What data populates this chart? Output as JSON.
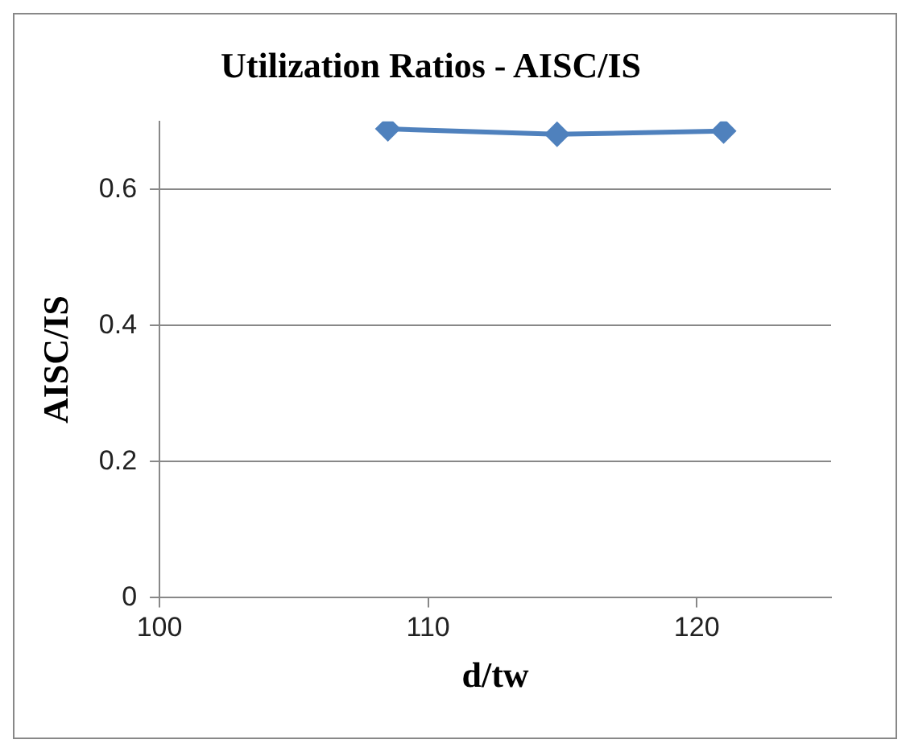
{
  "chart_data": {
    "type": "line",
    "title": "Utilization Ratios - AISC/IS",
    "xlabel": "d/tw",
    "ylabel": "AISC/IS",
    "x": [
      108.5,
      114.8,
      121.0
    ],
    "series": [
      {
        "color": "#4f81bd",
        "values": [
          0.689,
          0.681,
          0.686
        ]
      }
    ],
    "xlim": [
      100,
      125
    ],
    "xticks": [
      100,
      110,
      120
    ],
    "ylim": [
      0,
      0.7
    ],
    "yticks": [
      0,
      0.2,
      0.4,
      0.6
    ],
    "grid": "y",
    "legend": false,
    "marker": "diamond",
    "line_style": "solid"
  }
}
